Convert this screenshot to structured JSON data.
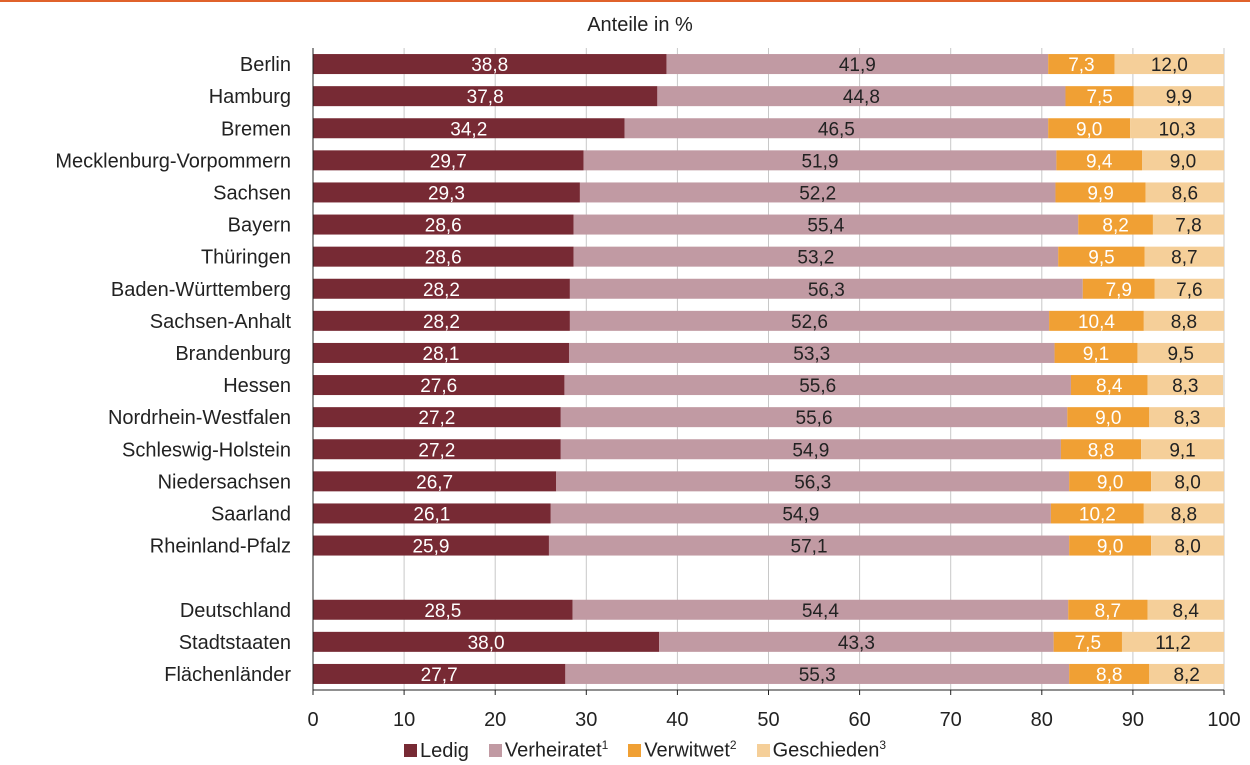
{
  "chart_data": {
    "type": "bar",
    "orientation": "horizontal",
    "stacked": true,
    "subtitle": "Anteile in %",
    "categories": [
      "Berlin",
      "Hamburg",
      "Bremen",
      "Mecklenburg-Vorpommern",
      "Sachsen",
      "Bayern",
      "Thüringen",
      "Baden-Württemberg",
      "Sachsen-Anhalt",
      "Brandenburg",
      "Hessen",
      "Nordrhein-Westfalen",
      "Schleswig-Holstein",
      "Niedersachsen",
      "Saarland",
      "Rheinland-Pfalz",
      "Deutschland",
      "Stadtstaaten",
      "Flächenländer"
    ],
    "groups": [
      16,
      3
    ],
    "series": [
      {
        "name": "Ledig",
        "color": "#772a34",
        "label_color": "#ffffff",
        "value_labels": [
          "38,8",
          "37,8",
          "34,2",
          "29,7",
          "29,3",
          "28,6",
          "28,6",
          "28,2",
          "28,2",
          "28,1",
          "27,6",
          "27,2",
          "27,2",
          "26,7",
          "26,1",
          "25,9",
          "28,5",
          "38,0",
          "27,7"
        ],
        "values": [
          38.8,
          37.8,
          34.2,
          29.7,
          29.3,
          28.6,
          28.6,
          28.2,
          28.2,
          28.1,
          27.6,
          27.2,
          27.2,
          26.7,
          26.1,
          25.9,
          28.5,
          38.0,
          27.7
        ]
      },
      {
        "name": "Verheiratet",
        "note": "1",
        "color": "#c19aa3",
        "label_color": "#222222",
        "value_labels": [
          "41,9",
          "44,8",
          "46,5",
          "51,9",
          "52,2",
          "55,4",
          "53,2",
          "56,3",
          "52,6",
          "53,3",
          "55,6",
          "55,6",
          "54,9",
          "56,3",
          "54,9",
          "57,1",
          "54,4",
          "43,3",
          "55,3"
        ],
        "values": [
          41.9,
          44.8,
          46.5,
          51.9,
          52.2,
          55.4,
          53.2,
          56.3,
          52.6,
          53.3,
          55.6,
          55.6,
          54.9,
          56.3,
          54.9,
          57.1,
          54.4,
          43.3,
          55.3
        ]
      },
      {
        "name": "Verwitwet",
        "note": "2",
        "color": "#f0a034",
        "label_color": "#ffffff",
        "value_labels": [
          "7,3",
          "7,5",
          "9,0",
          "9,4",
          "9,9",
          "8,2",
          "9,5",
          "7,9",
          "10,4",
          "9,1",
          "8,4",
          "9,0",
          "8,8",
          "9,0",
          "10,2",
          "9,0",
          "8,7",
          "7,5",
          "8,8"
        ],
        "values": [
          7.3,
          7.5,
          9.0,
          9.4,
          9.9,
          8.2,
          9.5,
          7.9,
          10.4,
          9.1,
          8.4,
          9.0,
          8.8,
          9.0,
          10.2,
          9.0,
          8.7,
          7.5,
          8.8
        ]
      },
      {
        "name": "Geschieden",
        "note": "3",
        "color": "#f5cf99",
        "label_color": "#222222",
        "value_labels": [
          "12,0",
          "9,9",
          "10,3",
          "9,0",
          "8,6",
          "7,8",
          "8,7",
          "7,6",
          "8,8",
          "9,5",
          "8,3",
          "8,3",
          "9,1",
          "8,0",
          "8,8",
          "8,0",
          "8,4",
          "11,2",
          "8,2"
        ],
        "values": [
          12.0,
          9.9,
          10.3,
          9.0,
          8.6,
          7.8,
          8.7,
          7.6,
          8.8,
          9.5,
          8.3,
          8.3,
          9.1,
          8.0,
          8.8,
          8.0,
          8.4,
          11.2,
          8.2
        ]
      }
    ],
    "xlim": [
      0,
      100
    ],
    "xticks": [
      0,
      10,
      20,
      30,
      40,
      50,
      60,
      70,
      80,
      90,
      100
    ],
    "grid": true,
    "legend_position": "bottom"
  }
}
